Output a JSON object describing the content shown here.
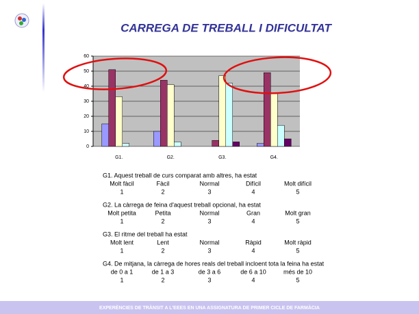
{
  "chart_data": {
    "type": "bar",
    "title": "CARREGA DE TREBALL I DIFICULTAT",
    "categories": [
      "G1.",
      "G2.",
      "G3.",
      "G4."
    ],
    "series": [
      {
        "color": "#9999ff",
        "values": [
          15,
          10,
          0,
          2
        ]
      },
      {
        "color": "#993366",
        "values": [
          51,
          44,
          4,
          49
        ]
      },
      {
        "color": "#ffffcc",
        "values": [
          33,
          41,
          47,
          35
        ]
      },
      {
        "color": "#ccffff",
        "values": [
          2,
          3,
          42,
          14
        ]
      },
      {
        "color": "#660066",
        "values": [
          0,
          0,
          3,
          5
        ]
      }
    ],
    "ylim": [
      0,
      60
    ],
    "yticks": [
      0,
      10,
      20,
      30,
      40,
      50,
      60
    ],
    "grid": true
  },
  "questions": [
    {
      "text": "G1. Aquest treball de curs comparat amb altres, ha estat",
      "options": [
        "Molt fàcil",
        "Fàcil",
        "Normal",
        "Difícil",
        "Molt difícil"
      ],
      "numbers": [
        1,
        2,
        3,
        4,
        5
      ]
    },
    {
      "text": "G2. La càrrega de feina d'aquest treball opcional, ha estat",
      "options": [
        "Molt petita",
        "Petita",
        "Normal",
        "Gran",
        "Molt gran"
      ],
      "numbers": [
        1,
        2,
        3,
        4,
        5
      ]
    },
    {
      "text": "G3. El ritme del treball ha estat",
      "options": [
        "Molt lent",
        "Lent",
        "Normal",
        "Ràpid",
        "Molt ràpid"
      ],
      "numbers": [
        1,
        2,
        3,
        4,
        5
      ]
    },
    {
      "text": "G4. De mitjana, la càrrega de hores reals del treball incloent tota la feina ha estat",
      "options": [
        "de 0 a 1",
        "de 1 a 3",
        "de 3 a 6",
        "de 6 a 10",
        "més de 10"
      ],
      "numbers": [
        1,
        2,
        3,
        4,
        5
      ]
    }
  ],
  "footer": "EXPERÈNCIES DE TRÀNSIT A L'EEES EN UNA ASSIGNATURA DE PRIMER CICLE DE FARMÀCIA"
}
